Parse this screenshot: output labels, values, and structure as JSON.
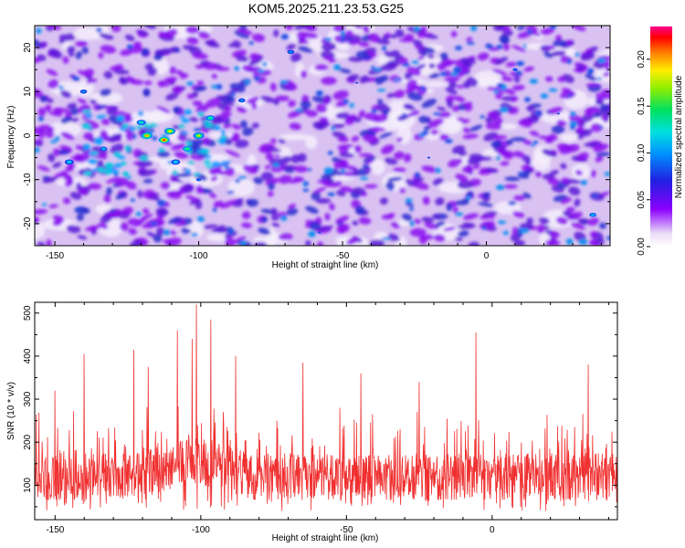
{
  "figure_title": "KOM5.2025.211.23.53.G25",
  "colors": {
    "snr_line": "#f03030",
    "axis": "#000000",
    "background": "#ffffff"
  },
  "chart_data": [
    {
      "type": "heatmap",
      "title": "KOM5.2025.211.23.53.G25",
      "xlabel": "Height of straight line (km)",
      "ylabel": "Frequency (Hz)",
      "xlim": [
        -157,
        43
      ],
      "ylim": [
        -25,
        25
      ],
      "x_ticks": [
        -150,
        -100,
        -50,
        0
      ],
      "x_tick_labels": [
        "-150",
        "-100",
        "-50",
        "0"
      ],
      "y_ticks": [
        -20,
        -10,
        0,
        10,
        20
      ],
      "y_tick_labels": [
        "-20",
        "-10",
        "0",
        "10",
        "20"
      ],
      "colorbar": {
        "label": "Normalized spectral amplitude",
        "range": [
          0,
          0.235
        ],
        "ticks": [
          0.0,
          0.05,
          0.1,
          0.15,
          0.2
        ],
        "tick_labels": [
          "0.00",
          "0.05",
          "0.10",
          "0.15",
          "0.20"
        ],
        "colormap": "rainbow (white-violet-blue-cyan-green-yellow-red-magenta)"
      },
      "hotspots": [
        {
          "x": -112,
          "y": -1,
          "value": 0.22
        },
        {
          "x": -118,
          "y": 0,
          "value": 0.2
        },
        {
          "x": -110,
          "y": 1,
          "value": 0.19
        },
        {
          "x": -100,
          "y": 0,
          "value": 0.18
        },
        {
          "x": -104,
          "y": -3,
          "value": 0.15
        },
        {
          "x": -96,
          "y": 4,
          "value": 0.14
        },
        {
          "x": -120,
          "y": 3,
          "value": 0.13
        },
        {
          "x": -108,
          "y": -6,
          "value": 0.12
        },
        {
          "x": -145,
          "y": -6,
          "value": 0.12
        },
        {
          "x": -133,
          "y": -3,
          "value": 0.11
        },
        {
          "x": -85,
          "y": 8,
          "value": 0.1
        },
        {
          "x": -68,
          "y": 19,
          "value": 0.1
        },
        {
          "x": -140,
          "y": 10,
          "value": 0.1
        },
        {
          "x": 37,
          "y": -18,
          "value": 0.11
        },
        {
          "x": -100,
          "y": -10,
          "value": 0.09
        },
        {
          "x": 10,
          "y": 15,
          "value": 0.09
        },
        {
          "x": -20,
          "y": -5,
          "value": 0.08
        },
        {
          "x": -45,
          "y": 12,
          "value": 0.08
        },
        {
          "x": 25,
          "y": 5,
          "value": 0.08
        },
        {
          "x": -58,
          "y": -22,
          "value": 0.08
        }
      ]
    },
    {
      "type": "line",
      "xlabel": "Height of straight line (km)",
      "ylabel": "SNR (10 * v/v)",
      "xlim": [
        -157,
        43
      ],
      "ylim": [
        20,
        525
      ],
      "x_ticks": [
        -150,
        -100,
        -50,
        0
      ],
      "x_tick_labels": [
        "-150",
        "-100",
        "-50",
        "0"
      ],
      "y_ticks": [
        100,
        200,
        300,
        400,
        500
      ],
      "y_tick_labels": [
        "100",
        "200",
        "300",
        "400",
        "500"
      ],
      "baseline_snr": 120,
      "noise_spread": 55,
      "peaks": [
        {
          "x": -101.5,
          "y": 520
        },
        {
          "x": -96.5,
          "y": 485
        },
        {
          "x": -108,
          "y": 460
        },
        {
          "x": -103,
          "y": 440
        },
        {
          "x": -123,
          "y": 415
        },
        {
          "x": -140,
          "y": 405
        },
        {
          "x": -5.5,
          "y": 455
        },
        {
          "x": -65,
          "y": 385
        },
        {
          "x": -88,
          "y": 400
        },
        {
          "x": -118,
          "y": 375
        },
        {
          "x": -45,
          "y": 360
        },
        {
          "x": -25,
          "y": 340
        },
        {
          "x": 33,
          "y": 380
        },
        {
          "x": -150,
          "y": 320
        }
      ]
    }
  ]
}
